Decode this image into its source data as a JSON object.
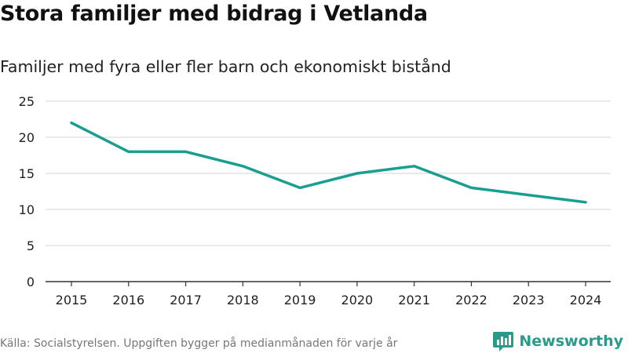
{
  "title": "Stora familjer med bidrag i Vetlanda",
  "subtitle": "Familjer med fyra eller fler barn och ekonomiskt bistånd",
  "source": "Källa: Socialstyrelsen. Uppgiften bygger på medianmånaden för varje år",
  "brand": "Newsworthy",
  "colors": {
    "line": "#1a9e90",
    "grid": "#d6d6d6",
    "axis": "#333333",
    "brand": "#2a9a8a"
  },
  "chart_data": {
    "type": "line",
    "title": "Stora familjer med bidrag i Vetlanda",
    "subtitle": "Familjer med fyra eller fler barn och ekonomiskt bistånd",
    "xlabel": "",
    "ylabel": "",
    "x": [
      "2015",
      "2016",
      "2017",
      "2018",
      "2019",
      "2020",
      "2021",
      "2022",
      "2023",
      "2024"
    ],
    "series": [
      {
        "name": "Familjer",
        "values": [
          22,
          18,
          18,
          16,
          13,
          15,
          16,
          13,
          12,
          11
        ]
      }
    ],
    "ylim": [
      0,
      25
    ],
    "yticks": [
      0,
      5,
      10,
      15,
      20,
      25
    ],
    "grid": true,
    "legend": "none"
  }
}
